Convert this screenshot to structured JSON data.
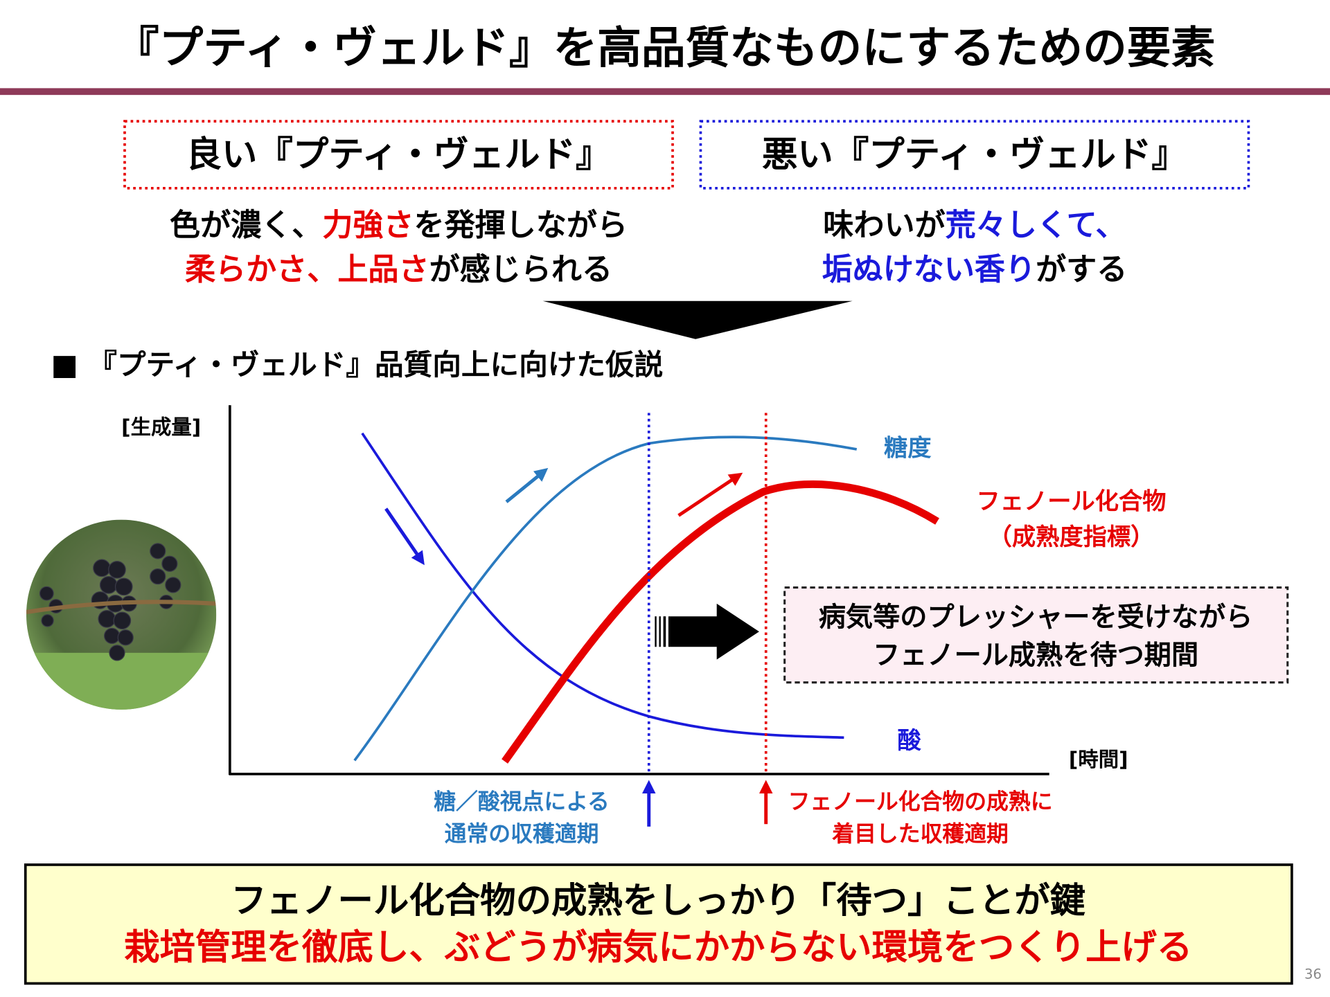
{
  "title": "『プティ・ヴェルド』を高品質なものにするための要素",
  "good": {
    "heading": "良い『プティ・ヴェルド』",
    "description": [
      [
        {
          "text": "色が濃く、"
        },
        {
          "text": "力強さ",
          "color": "#e60000"
        },
        {
          "text": "を発揮しながら"
        }
      ],
      [
        {
          "text": "柔らかさ、上品さ",
          "color": "#e60000"
        },
        {
          "text": "が感じられる"
        }
      ]
    ]
  },
  "bad": {
    "heading": "悪い『プティ・ヴェルド』",
    "description": [
      [
        {
          "text": "味わいが"
        },
        {
          "text": "荒々しくて、",
          "color": "#1a1adb"
        }
      ],
      [
        {
          "text": "垢ぬけない香り",
          "color": "#1a1adb"
        },
        {
          "text": "がする"
        }
      ]
    ]
  },
  "section_heading": "■ 『プティ・ヴェルド』品質向上に向けた仮説",
  "diagram": {
    "y_axis_label": "[生成量]",
    "x_axis_label": "[時間]",
    "sugar_label": "糖度",
    "phenol_label": [
      "フェノール化合物",
      "（成熟度指標）"
    ],
    "acid_label": "酸",
    "waiting_period": [
      "病気等のプレッシャーを受けながら",
      "フェノール成熟を待つ期間"
    ],
    "harvest_normal": [
      "糖／酸視点による",
      "通常の収穫適期"
    ],
    "harvest_phenol": [
      "フェノール化合物の成熟に",
      "着目した収穫適期"
    ]
  },
  "conclusion": [
    [
      {
        "text": "フェノール化合物の成熟をしっかり「待つ」ことが鍵"
      }
    ],
    [
      {
        "text": "栽培管理を徹底し、ぶどうが病気にかからない環境をつくり上げる",
        "color": "#e60000"
      }
    ]
  ],
  "page_number": "36"
}
